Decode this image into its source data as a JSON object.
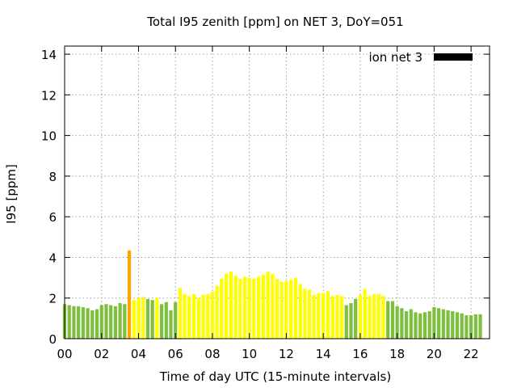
{
  "chart_data": {
    "type": "bar",
    "title": "Total I95 zenith [ppm] on NET 3, DoY=051",
    "xlabel": "Time of day UTC (15-minute intervals)",
    "ylabel": "I95 [ppm]",
    "xlim": [
      0,
      23
    ],
    "ylim": [
      0,
      14.4
    ],
    "x_ticks": [
      "00",
      "02",
      "04",
      "06",
      "08",
      "10",
      "12",
      "14",
      "16",
      "18",
      "20",
      "22"
    ],
    "y_ticks": [
      "0",
      "2",
      "4",
      "6",
      "8",
      "10",
      "12",
      "14"
    ],
    "grid": true,
    "legend": {
      "label": "ion net 3",
      "placement": "top-right",
      "color": "#000000"
    },
    "interval_hours": 0.25,
    "x_start": "00:00",
    "values": [
      1.7,
      1.65,
      1.6,
      1.6,
      1.55,
      1.5,
      1.4,
      1.45,
      1.65,
      1.7,
      1.65,
      1.6,
      1.75,
      1.7,
      4.35,
      1.9,
      2.0,
      2.05,
      1.95,
      1.9,
      2.0,
      1.7,
      1.8,
      1.4,
      1.8,
      2.5,
      2.2,
      2.1,
      2.2,
      2.0,
      2.15,
      2.2,
      2.3,
      2.6,
      2.95,
      3.2,
      3.3,
      3.1,
      2.95,
      3.05,
      3.0,
      2.95,
      3.05,
      3.15,
      3.3,
      3.2,
      2.95,
      2.8,
      2.85,
      2.9,
      3.0,
      2.7,
      2.45,
      2.4,
      2.15,
      2.25,
      2.25,
      2.35,
      2.1,
      2.15,
      2.1,
      1.65,
      1.75,
      1.95,
      2.15,
      2.45,
      2.1,
      2.2,
      2.2,
      2.1,
      1.85,
      1.85,
      1.6,
      1.5,
      1.35,
      1.45,
      1.3,
      1.25,
      1.3,
      1.35,
      1.55,
      1.5,
      1.45,
      1.4,
      1.35,
      1.3,
      1.25,
      1.15,
      1.15,
      1.2,
      1.2
    ],
    "bar_colors": [
      "#7fbf3f",
      "#7fbf3f",
      "#7fbf3f",
      "#7fbf3f",
      "#7fbf3f",
      "#7fbf3f",
      "#7fbf3f",
      "#7fbf3f",
      "#7fbf3f",
      "#7fbf3f",
      "#7fbf3f",
      "#7fbf3f",
      "#7fbf3f",
      "#7fbf3f",
      "#ffa500",
      "#ffff00",
      "#ffff00",
      "#ffff00",
      "#7fbf3f",
      "#7fbf3f",
      "#ffff00",
      "#7fbf3f",
      "#7fbf3f",
      "#7fbf3f",
      "#7fbf3f",
      "#ffff00",
      "#ffff00",
      "#ffff00",
      "#ffff00",
      "#ffff00",
      "#ffff00",
      "#ffff00",
      "#ffff00",
      "#ffff00",
      "#ffff00",
      "#ffff00",
      "#ffff00",
      "#ffff00",
      "#ffff00",
      "#ffff00",
      "#ffff00",
      "#ffff00",
      "#ffff00",
      "#ffff00",
      "#ffff00",
      "#ffff00",
      "#ffff00",
      "#ffff00",
      "#ffff00",
      "#ffff00",
      "#ffff00",
      "#ffff00",
      "#ffff00",
      "#ffff00",
      "#ffff00",
      "#ffff00",
      "#ffff00",
      "#ffff00",
      "#ffff00",
      "#ffff00",
      "#ffff00",
      "#7fbf3f",
      "#7fbf3f",
      "#7fbf3f",
      "#ffff00",
      "#ffff00",
      "#ffff00",
      "#ffff00",
      "#ffff00",
      "#ffff00",
      "#7fbf3f",
      "#7fbf3f",
      "#7fbf3f",
      "#7fbf3f",
      "#7fbf3f",
      "#7fbf3f",
      "#7fbf3f",
      "#7fbf3f",
      "#7fbf3f",
      "#7fbf3f",
      "#7fbf3f",
      "#7fbf3f",
      "#7fbf3f",
      "#7fbf3f",
      "#7fbf3f",
      "#7fbf3f",
      "#7fbf3f",
      "#7fbf3f",
      "#7fbf3f",
      "#7fbf3f",
      "#7fbf3f"
    ]
  }
}
